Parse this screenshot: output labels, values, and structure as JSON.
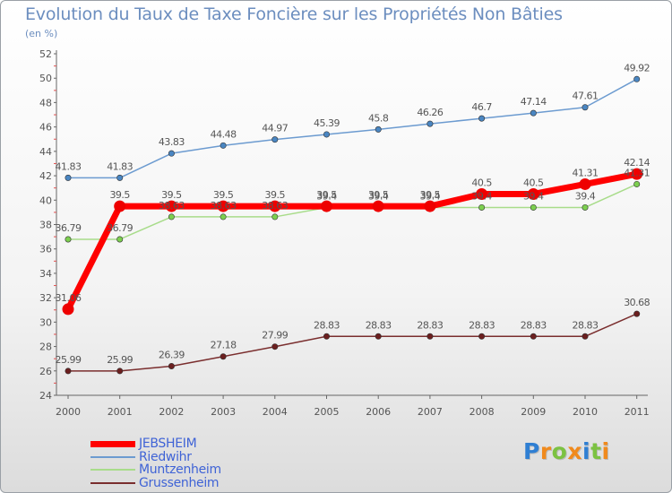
{
  "chart_data": {
    "type": "line",
    "title": "Evolution du Taux de Taxe Foncière sur les Propriétés Non Bâties",
    "subtitle": "(en %)",
    "xlabel": "",
    "ylabel": "(en %)",
    "ylim": [
      24,
      52
    ],
    "yticks": [
      "24",
      "26",
      "28",
      "30",
      "32",
      "34",
      "36",
      "38",
      "40",
      "42",
      "44",
      "46",
      "48",
      "50",
      "52"
    ],
    "categories": [
      "2000",
      "2001",
      "2002",
      "2003",
      "2004",
      "2005",
      "2006",
      "2007",
      "2008",
      "2009",
      "2010",
      "2011"
    ],
    "series": [
      {
        "name": "Riedwihr",
        "color": "#6c9bd0",
        "dot": "#4a86c2",
        "values": [
          41.83,
          41.83,
          43.83,
          44.48,
          44.97,
          45.39,
          45.8,
          46.26,
          46.7,
          47.14,
          47.61,
          49.92
        ],
        "labels": [
          "41.83",
          "41.83",
          "43.83",
          "44.48",
          "44.97",
          "45.39",
          "45.8",
          "46.26",
          "46.7",
          "47.14",
          "47.61",
          "49.92"
        ]
      },
      {
        "name": "Muntzenheim",
        "color": "#a8dc8a",
        "dot": "#7ccf4f",
        "values": [
          36.79,
          36.79,
          38.63,
          38.63,
          38.63,
          39.4,
          39.4,
          39.4,
          39.4,
          39.4,
          39.4,
          41.31
        ],
        "labels": [
          "36.79",
          "36.79",
          "38.63",
          "38.63",
          "38.63",
          "39.4",
          "39.4",
          "39.4",
          "39.4",
          "39.4",
          "39.4",
          "41.31"
        ]
      },
      {
        "name": "Grussenheim",
        "color": "#7a2e2e",
        "dot": "#6b1f1f",
        "values": [
          25.99,
          25.99,
          26.39,
          27.18,
          27.99,
          28.83,
          28.83,
          28.83,
          28.83,
          28.83,
          28.83,
          30.68
        ],
        "labels": [
          "25.99",
          "25.99",
          "26.39",
          "27.18",
          "27.99",
          "28.83",
          "28.83",
          "28.83",
          "28.83",
          "28.83",
          "28.83",
          "30.68"
        ]
      },
      {
        "name": "JEBSHEIM",
        "color": "#ff0000",
        "dot": "#ee0000",
        "values": [
          31.06,
          39.5,
          39.5,
          39.5,
          39.5,
          39.5,
          39.5,
          39.5,
          40.5,
          40.5,
          41.31,
          42.14
        ],
        "labels": [
          "31.06",
          "39.5",
          "39.5",
          "39.5",
          "39.5",
          "39.5",
          "39.5",
          "39.5",
          "40.5",
          "40.5",
          "41.31",
          "42.14"
        ]
      }
    ],
    "legend": [
      "JEBSHEIM",
      "Riedwihr",
      "Muntzenheim",
      "Grussenheim"
    ],
    "legend_position": "bottom-left",
    "grid": false
  },
  "logo": {
    "letters": [
      "P",
      "r",
      "o",
      "x",
      "i",
      "t",
      "i"
    ],
    "colors": [
      "#2f7fd3",
      "#f08a1d",
      "#7cc242",
      "#f08a1d",
      "#2f7fd3",
      "#7cc242",
      "#f08a1d"
    ]
  }
}
